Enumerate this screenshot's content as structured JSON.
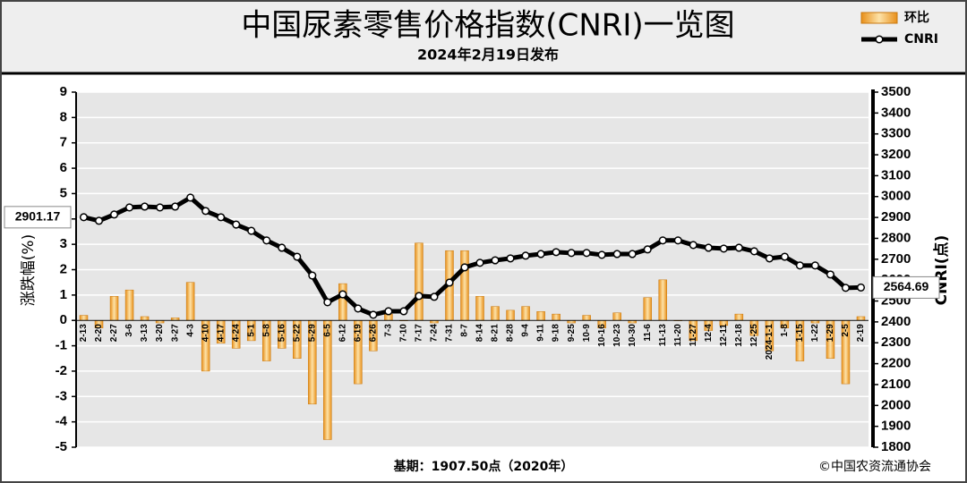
{
  "chart_data": {
    "type": "bar-line",
    "title": "中国尿素零售价格指数(CNRI)一览图",
    "subtitle": "2024年2月19日发布",
    "y_label": "涨跌幅(%)",
    "y2_label": "CNRI(点)",
    "footer_left": "基期：1907.50点（2020年）",
    "footer_right": "©中国农资流通协会",
    "categories": [
      "2-13",
      "2-20",
      "2-27",
      "3-6",
      "3-13",
      "3-20",
      "3-27",
      "4-3",
      "4-10",
      "4-17",
      "4-24",
      "5-1",
      "5-8",
      "5-16",
      "5-22",
      "5-29",
      "6-5",
      "6-12",
      "6-19",
      "6-26",
      "7-3",
      "7-10",
      "7-17",
      "7-24",
      "7-31",
      "8-7",
      "8-14",
      "8-21",
      "8-28",
      "9-4",
      "9-11",
      "9-18",
      "9-25",
      "10-9",
      "10-16",
      "10-23",
      "10-30",
      "11-6",
      "11-13",
      "11-20",
      "11-27",
      "12-4",
      "12-11",
      "12-18",
      "12-25",
      "2024-1-1",
      "1-8",
      "1-15",
      "1-22",
      "1-29",
      "2-5",
      "2-19"
    ],
    "series": [
      {
        "name": "环比",
        "type": "bar",
        "color": "#f0a030",
        "values": [
          0.2,
          -0.3,
          0.95,
          1.2,
          0.15,
          -0.1,
          0.1,
          1.5,
          -2.0,
          -0.9,
          -1.1,
          -0.8,
          -1.6,
          -1.1,
          -1.5,
          -3.3,
          -4.7,
          1.45,
          -2.5,
          -1.2,
          0.25,
          0.0,
          3.05,
          -0.1,
          2.75,
          2.75,
          0.95,
          0.55,
          0.4,
          0.55,
          0.35,
          0.25,
          -0.1,
          0.2,
          -0.3,
          0.3,
          -0.1,
          0.9,
          1.6,
          0.0,
          -0.8,
          -0.4,
          -0.2,
          0.25,
          -0.6,
          -1.2,
          -0.3,
          -1.6,
          -0.1,
          -1.5,
          -2.5,
          0.15
        ]
      },
      {
        "name": "CNRI",
        "type": "line",
        "axis": "y2",
        "color": "#000000",
        "values": [
          2901.17,
          2884,
          2914,
          2948,
          2952,
          2948,
          2952,
          2995,
          2931,
          2901,
          2866,
          2836,
          2790,
          2755,
          2712,
          2622,
          2494,
          2532,
          2464,
          2434,
          2451,
          2451,
          2524,
          2520,
          2588,
          2661,
          2683,
          2695,
          2704,
          2717,
          2725,
          2734,
          2730,
          2730,
          2721,
          2725,
          2725,
          2747,
          2790,
          2790,
          2768,
          2755,
          2751,
          2755,
          2738,
          2704,
          2712,
          2670,
          2670,
          2627,
          2563,
          2564.69
        ],
        "value_labels": [
          "2901.17",
          null,
          null,
          null,
          null,
          null,
          null,
          null,
          null,
          null,
          null,
          null,
          null,
          null,
          null,
          null,
          null,
          null,
          null,
          null,
          null,
          null,
          null,
          null,
          null,
          null,
          null,
          null,
          null,
          null,
          null,
          null,
          null,
          null,
          null,
          null,
          null,
          null,
          null,
          null,
          null,
          null,
          null,
          null,
          null,
          null,
          null,
          null,
          null,
          null,
          null,
          "2564.69"
        ]
      }
    ],
    "ylim": [
      -5,
      9
    ],
    "yticks": [
      -5,
      -4,
      -3,
      -2,
      -1,
      0,
      1,
      2,
      3,
      4,
      5,
      6,
      7,
      8,
      9
    ],
    "y2lim": [
      1800,
      3500
    ],
    "y2ticks": [
      1800,
      1900,
      2000,
      2100,
      2200,
      2300,
      2400,
      2500,
      2600,
      2700,
      2800,
      2900,
      3000,
      3100,
      3200,
      3300,
      3400,
      3500
    ],
    "grid": true,
    "legend": "top-right"
  }
}
